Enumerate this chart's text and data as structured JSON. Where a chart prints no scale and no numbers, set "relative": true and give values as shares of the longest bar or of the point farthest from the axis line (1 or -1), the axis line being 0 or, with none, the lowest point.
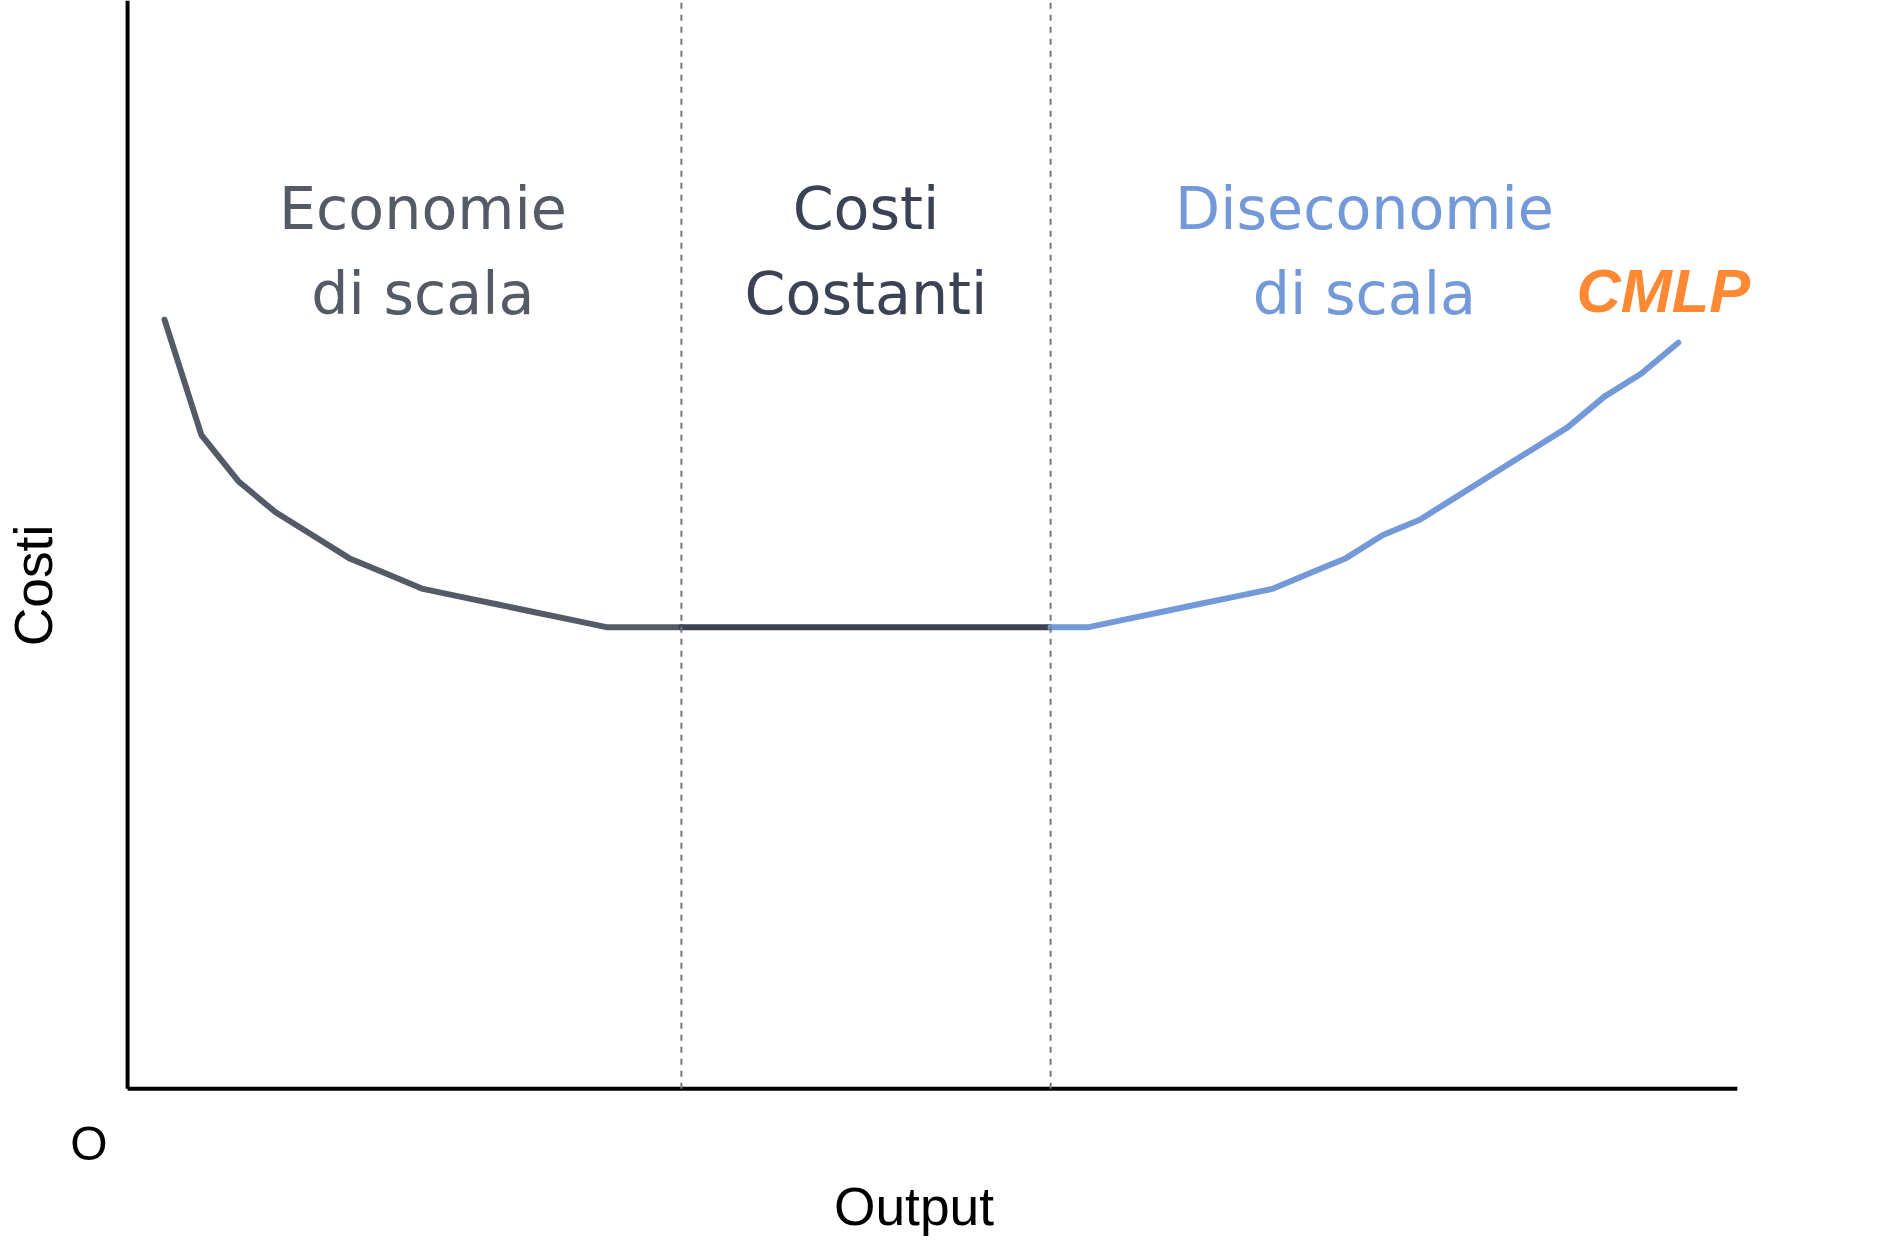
{
  "chart_data": {
    "type": "line",
    "relative": true,
    "xlabel": "Output",
    "ylabel": "Costi",
    "tick_labels": false,
    "grid": false,
    "marker": "none",
    "line_style": "solid",
    "categories": [
      null,
      null,
      null,
      null,
      null,
      null,
      null,
      null,
      null,
      null,
      null,
      null,
      null,
      null,
      null,
      null,
      null,
      null,
      null,
      null,
      null,
      null,
      null,
      null,
      null,
      null,
      null,
      null,
      null,
      null,
      null,
      null,
      null,
      null,
      null,
      null,
      null,
      null,
      null,
      null,
      null,
      null
    ],
    "series": [
      {
        "color": "#545b66",
        "values": [
          1,
          0.85,
          0.79,
          0.75,
          0.72,
          0.69,
          0.67,
          0.65,
          0.64,
          0.63,
          0.62,
          0.61,
          0.6,
          0.6,
          0.6,
          null,
          null,
          null,
          null,
          null,
          null,
          null,
          null,
          null,
          null,
          null,
          null,
          null,
          null,
          null,
          null,
          null,
          null,
          null,
          null,
          null,
          null,
          null,
          null,
          null,
          null,
          null
        ]
      },
      {
        "color": "#3b4256",
        "values": [
          null,
          null,
          null,
          null,
          null,
          null,
          null,
          null,
          null,
          null,
          null,
          null,
          null,
          null,
          0.6,
          0.6,
          0.6,
          0.6,
          0.6,
          0.6,
          0.6,
          0.6,
          0.6,
          0.6,
          0.6,
          null,
          null,
          null,
          null,
          null,
          null,
          null,
          null,
          null,
          null,
          null,
          null,
          null,
          null,
          null,
          null,
          null
        ]
      },
      {
        "color": "#7399d9",
        "values": [
          null,
          null,
          null,
          null,
          null,
          null,
          null,
          null,
          null,
          null,
          null,
          null,
          null,
          null,
          null,
          null,
          null,
          null,
          null,
          null,
          null,
          null,
          null,
          null,
          0.6,
          0.6,
          0.61,
          0.62,
          0.63,
          0.64,
          0.65,
          0.67,
          0.69,
          0.72,
          0.74,
          0.77,
          0.8,
          0.83,
          0.86,
          0.9,
          0.93,
          0.97
        ]
      }
    ],
    "annotations": [
      "Economie\ndi scala",
      "Costi\nCostanti",
      "Diseconomie\ndi scala",
      "CMLP",
      "O"
    ]
  }
}
